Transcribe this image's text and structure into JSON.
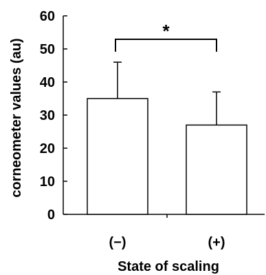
{
  "chart_data": {
    "type": "bar",
    "title": "",
    "xlabel": "State of scaling",
    "ylabel": "corneometer values (au)",
    "categories": [
      "(−)",
      "(+)"
    ],
    "series": [
      {
        "values": [
          35,
          27
        ],
        "error_upper": [
          46,
          37
        ]
      }
    ],
    "ylim": [
      0,
      60
    ],
    "yticks": [
      "0",
      "10",
      "20",
      "30",
      "40",
      "50",
      "60"
    ],
    "grid": false,
    "legend": "none",
    "annotations": [
      {
        "text": "*",
        "type": "significance-bracket",
        "between": [
          0,
          1
        ]
      }
    ],
    "colors": {
      "bar_fill": "#ffffff",
      "bar_stroke": "#000000"
    }
  }
}
